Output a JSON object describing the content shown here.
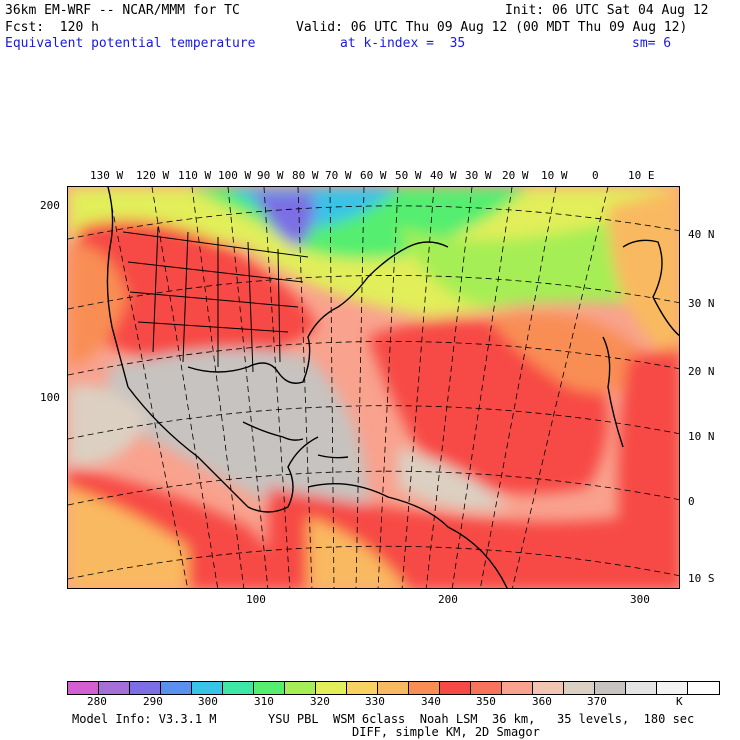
{
  "header": {
    "model": "36km EM-WRF -- NCAR/MMM for TC",
    "init": "Init: 06 UTC Sat 04 Aug 12",
    "fcst": "Fcst:  120 h",
    "valid": "Valid: 06 UTC Thu 09 Aug 12 (00 MDT Thu 09 Aug 12)",
    "field": "Equivalent potential temperature",
    "level": "at k-index =  35",
    "smooth": "sm= 6"
  },
  "map": {
    "top_lon_labels": [
      "130 W",
      "120 W",
      "110 W",
      "100 W",
      "90 W",
      "80 W",
      "70 W",
      "60 W",
      "50 W",
      "40 W",
      "30 W",
      "20 W",
      "10 W",
      "0",
      "10 E"
    ],
    "right_lat_labels": [
      "40 N",
      "30 N",
      "20 N",
      "10 N",
      "0",
      "10 S"
    ],
    "left_grid_labels": [
      "200",
      "100"
    ],
    "bottom_grid_labels": [
      "100",
      "200",
      "300"
    ]
  },
  "colorbar": {
    "colors": [
      "#d35fd3",
      "#a66fd8",
      "#7c6ee4",
      "#5a91ee",
      "#38c3e8",
      "#3ee7a6",
      "#55ee6f",
      "#a6ee55",
      "#e2ee5a",
      "#f8d261",
      "#f9b960",
      "#f98e55",
      "#f74a45",
      "#f9735c",
      "#f9a28e",
      "#f1c5b1",
      "#dcd0c2",
      "#c7c3c0",
      "#e4e4e4",
      "#f3f3f3",
      "#ffffff"
    ],
    "labels": [
      "280",
      "290",
      "300",
      "310",
      "320",
      "330",
      "340",
      "350",
      "360",
      "370"
    ],
    "unit": "K"
  },
  "footer": {
    "model_info": "Model Info: V3.3.1 M",
    "physics": "YSU PBL  WSM 6class  Noah LSM  36 km,   35 levels,  180 sec",
    "diff": "DIFF, simple KM, 2D Smagor"
  }
}
